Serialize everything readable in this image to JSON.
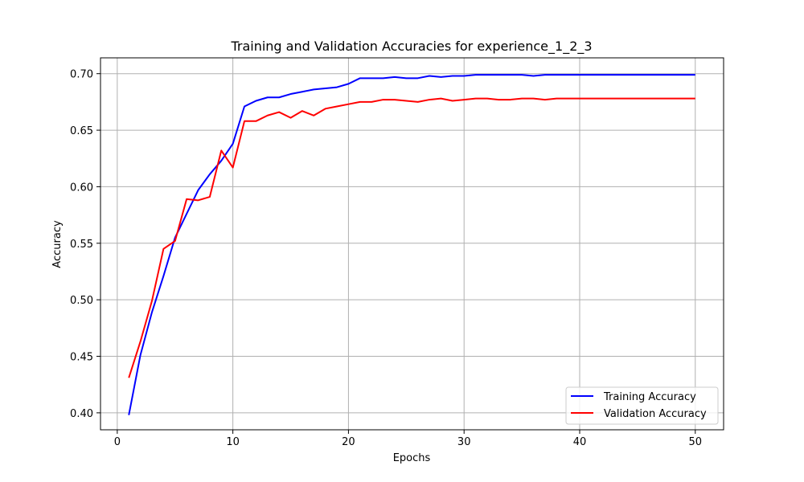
{
  "chart_data": {
    "type": "line",
    "title": "Training and Validation Accuracies for experience_1_2_3",
    "xlabel": "Epochs",
    "ylabel": "Accuracy",
    "xlim": [
      -1.45,
      52.45
    ],
    "ylim": [
      0.385,
      0.714
    ],
    "xticks": [
      0,
      10,
      20,
      30,
      40,
      50
    ],
    "yticks": [
      0.4,
      0.45,
      0.5,
      0.55,
      0.6,
      0.65,
      0.7
    ],
    "grid": true,
    "legend_position": "lower-right",
    "x": [
      1,
      2,
      3,
      4,
      5,
      6,
      7,
      8,
      9,
      10,
      11,
      12,
      13,
      14,
      15,
      16,
      17,
      18,
      19,
      20,
      21,
      22,
      23,
      24,
      25,
      26,
      27,
      28,
      29,
      30,
      31,
      32,
      33,
      34,
      35,
      36,
      37,
      38,
      39,
      40,
      41,
      42,
      43,
      44,
      45,
      46,
      47,
      48,
      49,
      50
    ],
    "series": [
      {
        "name": "Training Accuracy",
        "color": "#0000ff",
        "values": [
          0.398,
          0.451,
          0.489,
          0.521,
          0.555,
          0.576,
          0.597,
          0.611,
          0.623,
          0.638,
          0.671,
          0.676,
          0.679,
          0.679,
          0.682,
          0.684,
          0.686,
          0.687,
          0.688,
          0.691,
          0.696,
          0.696,
          0.696,
          0.697,
          0.696,
          0.696,
          0.698,
          0.697,
          0.698,
          0.698,
          0.699,
          0.699,
          0.699,
          0.699,
          0.699,
          0.698,
          0.699,
          0.699,
          0.699,
          0.699,
          0.699,
          0.699,
          0.699,
          0.699,
          0.699,
          0.699,
          0.699,
          0.699,
          0.699,
          0.699
        ]
      },
      {
        "name": "Validation Accuracy",
        "color": "#ff0000",
        "values": [
          0.431,
          0.463,
          0.499,
          0.545,
          0.552,
          0.589,
          0.588,
          0.591,
          0.632,
          0.617,
          0.658,
          0.658,
          0.663,
          0.666,
          0.661,
          0.667,
          0.663,
          0.669,
          0.671,
          0.673,
          0.675,
          0.675,
          0.677,
          0.677,
          0.676,
          0.675,
          0.677,
          0.678,
          0.676,
          0.677,
          0.678,
          0.678,
          0.677,
          0.677,
          0.678,
          0.678,
          0.677,
          0.678,
          0.678,
          0.678,
          0.678,
          0.678,
          0.678,
          0.678,
          0.678,
          0.678,
          0.678,
          0.678,
          0.678,
          0.678
        ]
      }
    ]
  }
}
